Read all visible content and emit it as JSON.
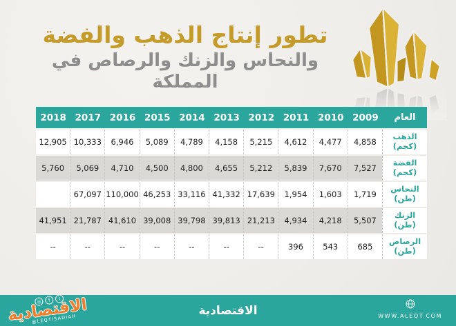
{
  "header": {
    "title_line1": "تطور إنتاج الذهب والفضة",
    "title_line2": "والنحاس والزنك والرصاص في المملكة"
  },
  "table": {
    "year_header_label": "العام",
    "years": [
      "2018",
      "2017",
      "2016",
      "2015",
      "2014",
      "2013",
      "2012",
      "2011",
      "2010",
      "2009"
    ],
    "rows": [
      {
        "metal": "الذهب",
        "unit": "(كجم)",
        "values": [
          "12,905",
          "10,333",
          "6,946",
          "5,089",
          "4,789",
          "4,158",
          "5,215",
          "4,612",
          "4,477",
          "4,858"
        ]
      },
      {
        "metal": "الفضة",
        "unit": "(كجم)",
        "values": [
          "5,760",
          "5,069",
          "4,710",
          "4,500",
          "4,800",
          "4,655",
          "5,212",
          "5,839",
          "7,670",
          "7,527"
        ]
      },
      {
        "metal": "النحاس",
        "unit": "(طن)",
        "values": [
          "",
          "67,097",
          "110,000",
          "46,253",
          "33,116",
          "41,332",
          "17,639",
          "1,954",
          "1,603",
          "1,719"
        ]
      },
      {
        "metal": "الزنك",
        "unit": "(طن)",
        "values": [
          "41,951",
          "21,787",
          "41,610",
          "39,008",
          "39,798",
          "39,813",
          "21,213",
          "4,934",
          "4,218",
          "5,507"
        ]
      },
      {
        "metal": "الرصاص",
        "unit": "(طن)",
        "values": [
          "--",
          "--",
          "--",
          "--",
          "--",
          "--",
          "--",
          "396",
          "543",
          "685"
        ]
      }
    ]
  },
  "footer": {
    "brand_center": "الاقتصادية",
    "brand_left": "الاقتصادية",
    "handle": "@LEQTISADIAH",
    "website": "WWW.ALEQT.COM",
    "social_icons": [
      {
        "name": "instagram-icon",
        "glyph": "◎"
      },
      {
        "name": "facebook-icon",
        "glyph": "f"
      },
      {
        "name": "twitter-icon",
        "glyph": "t"
      }
    ]
  },
  "colors": {
    "teal": "#2aa69c",
    "title_gold": "#c49a28",
    "subtitle_gray": "#8d8d8d",
    "row_alt_gray": "#dbd9d6",
    "brand_orange": "#ee7e2b",
    "crystal_gold_light": "#d9b236",
    "crystal_gold_dark": "#c3961f",
    "background": "#f1efec"
  },
  "chart_data": {
    "type": "table",
    "title": "تطور إنتاج الذهب والفضة والنحاس والزنك والرصاص في المملكة",
    "x": [
      2009,
      2010,
      2011,
      2012,
      2013,
      2014,
      2015,
      2016,
      2017,
      2018
    ],
    "xlabel": "العام",
    "series": [
      {
        "name": "الذهب (كجم)",
        "values": [
          4858,
          4477,
          4612,
          5215,
          4158,
          4789,
          5089,
          6946,
          10333,
          12905
        ]
      },
      {
        "name": "الفضة (كجم)",
        "values": [
          7527,
          7670,
          5839,
          5212,
          4655,
          4800,
          4500,
          4710,
          5069,
          5760
        ]
      },
      {
        "name": "النحاس (طن)",
        "values": [
          1719,
          1603,
          1954,
          17639,
          41332,
          33116,
          46253,
          110000,
          67097,
          null
        ]
      },
      {
        "name": "الزنك (طن)",
        "values": [
          5507,
          4218,
          4934,
          21213,
          39813,
          39798,
          39008,
          41610,
          21787,
          41951
        ]
      },
      {
        "name": "الرصاص (طن)",
        "values": [
          685,
          543,
          396,
          null,
          null,
          null,
          null,
          null,
          null,
          null
        ]
      }
    ]
  }
}
